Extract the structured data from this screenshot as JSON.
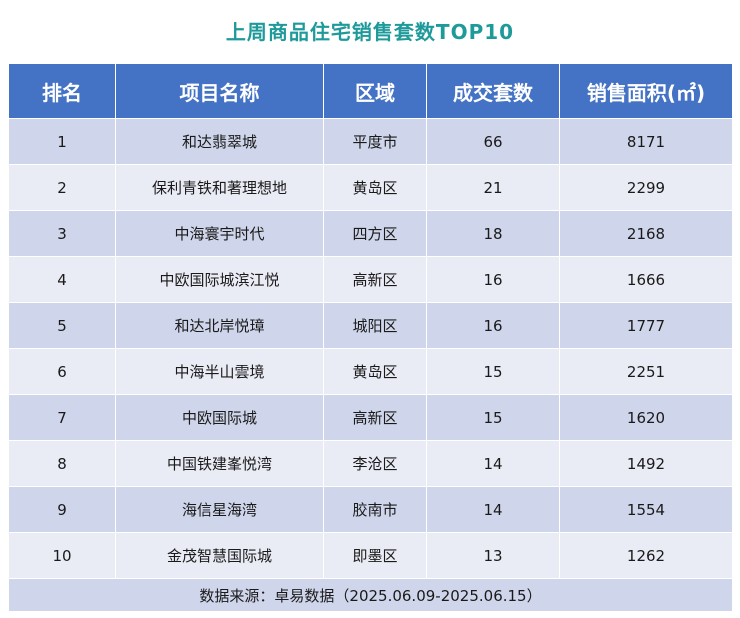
{
  "title": "上周商品住宅销售套数TOP10",
  "headers": [
    "排名",
    "项目名称",
    "区域",
    "成交套数",
    "销售面积(㎡)"
  ],
  "rows": [
    {
      "rank": "1",
      "project": "和达翡翠城",
      "district": "平度市",
      "units": "66",
      "area": "8171"
    },
    {
      "rank": "2",
      "project": "保利青铁和著理想地",
      "district": "黄岛区",
      "units": "21",
      "area": "2299"
    },
    {
      "rank": "3",
      "project": "中海寰宇时代",
      "district": "四方区",
      "units": "18",
      "area": "2168"
    },
    {
      "rank": "4",
      "project": "中欧国际城滨江悦",
      "district": "高新区",
      "units": "16",
      "area": "1666"
    },
    {
      "rank": "5",
      "project": "和达北岸悦璋",
      "district": "城阳区",
      "units": "16",
      "area": "1777"
    },
    {
      "rank": "6",
      "project": "中海半山雲境",
      "district": "黄岛区",
      "units": "15",
      "area": "2251"
    },
    {
      "rank": "7",
      "project": "中欧国际城",
      "district": "高新区",
      "units": "15",
      "area": "1620"
    },
    {
      "rank": "8",
      "project": "中国铁建峯悦湾",
      "district": "李沧区",
      "units": "14",
      "area": "1492"
    },
    {
      "rank": "9",
      "project": "海信星海湾",
      "district": "胶南市",
      "units": "14",
      "area": "1554"
    },
    {
      "rank": "10",
      "project": "金茂智慧国际城",
      "district": "即墨区",
      "units": "13",
      "area": "1262"
    }
  ],
  "source": "数据来源：卓易数据（2025.06.09-2025.06.15）"
}
